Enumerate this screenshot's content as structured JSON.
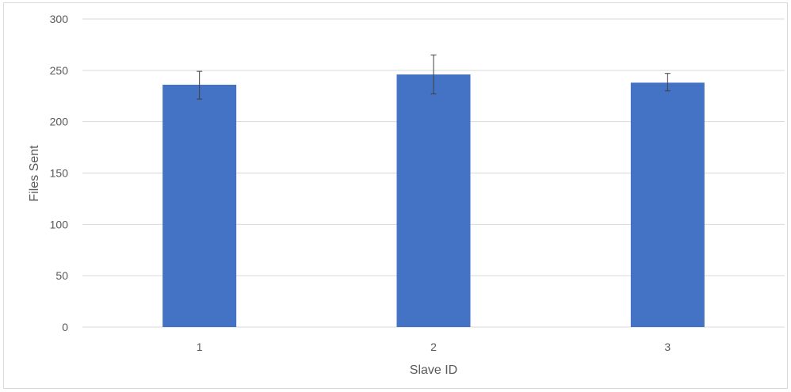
{
  "chart_data": {
    "type": "bar",
    "title": "",
    "xlabel": "Slave ID",
    "ylabel": "Files Sent",
    "categories": [
      "1",
      "2",
      "3"
    ],
    "series": [
      {
        "values": [
          236,
          246,
          238
        ],
        "error_low": [
          222,
          227,
          230
        ],
        "error_high": [
          249,
          265,
          247
        ]
      }
    ],
    "ylim": [
      0,
      300
    ],
    "yticks": [
      0,
      50,
      100,
      150,
      200,
      250,
      300
    ],
    "grid": true,
    "legend": "none",
    "colors": {
      "bar": "#4472c4",
      "grid": "#d9d9d9",
      "error_bar": "#404040",
      "text": "#595959"
    }
  }
}
